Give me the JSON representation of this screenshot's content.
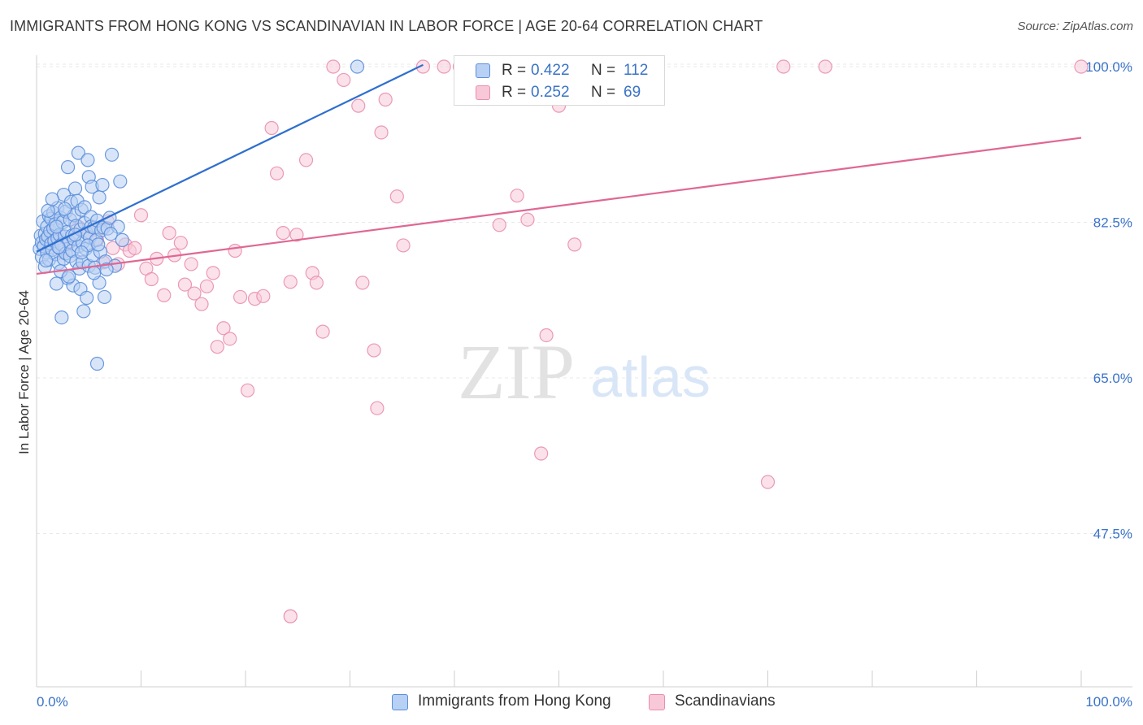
{
  "title": "IMMIGRANTS FROM HONG KONG VS SCANDINAVIAN IN LABOR FORCE | AGE 20-64 CORRELATION CHART",
  "source": "Source: ZipAtlas.com",
  "watermark": {
    "zip": "ZIP",
    "atlas": "atlas"
  },
  "colors": {
    "blue_fill": "#b8d0f3",
    "blue_stroke": "#5b8fdc",
    "blue_line": "#2f6fcf",
    "pink_fill": "#f8c8d8",
    "pink_stroke": "#e98fae",
    "pink_line": "#e06793",
    "axis_text": "#3a73c8",
    "grid": "#e8e8e8"
  },
  "legend_top": [
    {
      "r_label": "R =",
      "r_value": "0.422",
      "n_label": "N =",
      "n_value": "112",
      "color": "blue"
    },
    {
      "r_label": "R =",
      "r_value": "0.252",
      "n_label": "N =",
      "n_value": "69",
      "color": "pink"
    }
  ],
  "legend_bottom": [
    {
      "label": "Immigrants from Hong Kong",
      "color": "blue"
    },
    {
      "label": "Scandinavians",
      "color": "pink"
    }
  ],
  "chart_data": {
    "type": "scatter",
    "title": "IMMIGRANTS FROM HONG KONG VS SCANDINAVIAN IN LABOR FORCE | AGE 20-64 CORRELATION CHART",
    "xlabel": "",
    "ylabel": "In Labor Force | Age 20-64",
    "xlim": [
      0,
      100
    ],
    "ylim": [
      31,
      102
    ],
    "x_tick_labels": [
      "0.0%",
      "100.0%"
    ],
    "y_ticks": [
      47.5,
      65.0,
      82.5,
      100.0
    ],
    "y_tick_labels": [
      "47.5%",
      "65.0%",
      "82.5%",
      "100.0%"
    ],
    "grid": true,
    "legend_position": "top-center",
    "series": [
      {
        "name": "Immigrants from Hong Kong",
        "color": "blue",
        "trend": {
          "x": [
            0.0,
            37.0
          ],
          "y": [
            79.2,
            100.2
          ]
        },
        "points": [
          [
            0.3,
            79.5
          ],
          [
            0.4,
            81.0
          ],
          [
            0.5,
            78.6
          ],
          [
            0.5,
            80.2
          ],
          [
            0.6,
            82.6
          ],
          [
            0.7,
            79.8
          ],
          [
            0.8,
            81.2
          ],
          [
            0.8,
            77.5
          ],
          [
            0.9,
            80.6
          ],
          [
            1.0,
            82.0
          ],
          [
            1.0,
            79.1
          ],
          [
            1.1,
            80.9
          ],
          [
            1.2,
            83.2
          ],
          [
            1.2,
            78.3
          ],
          [
            1.3,
            81.5
          ],
          [
            1.4,
            80.1
          ],
          [
            1.4,
            82.9
          ],
          [
            1.5,
            79.4
          ],
          [
            1.6,
            81.8
          ],
          [
            1.6,
            83.6
          ],
          [
            1.7,
            80.4
          ],
          [
            1.8,
            78.9
          ],
          [
            1.8,
            82.3
          ],
          [
            1.9,
            75.6
          ],
          [
            2.0,
            80.7
          ],
          [
            2.0,
            84.1
          ],
          [
            2.1,
            77.9
          ],
          [
            2.2,
            81.1
          ],
          [
            2.2,
            79.6
          ],
          [
            2.3,
            83.0
          ],
          [
            2.4,
            80.0
          ],
          [
            2.4,
            71.8
          ],
          [
            2.5,
            82.5
          ],
          [
            2.6,
            78.4
          ],
          [
            2.6,
            85.6
          ],
          [
            2.7,
            80.9
          ],
          [
            2.8,
            79.0
          ],
          [
            2.8,
            83.7
          ],
          [
            2.9,
            81.4
          ],
          [
            3.0,
            88.7
          ],
          [
            3.0,
            76.2
          ],
          [
            3.1,
            80.3
          ],
          [
            3.2,
            82.8
          ],
          [
            3.2,
            78.7
          ],
          [
            3.3,
            84.8
          ],
          [
            3.4,
            81.0
          ],
          [
            3.4,
            79.3
          ],
          [
            3.5,
            75.4
          ],
          [
            3.6,
            83.3
          ],
          [
            3.6,
            80.6
          ],
          [
            3.7,
            86.3
          ],
          [
            3.8,
            78.1
          ],
          [
            3.8,
            82.1
          ],
          [
            3.9,
            84.9
          ],
          [
            4.0,
            90.3
          ],
          [
            4.0,
            79.8
          ],
          [
            4.1,
            77.3
          ],
          [
            4.2,
            81.7
          ],
          [
            4.2,
            75.0
          ],
          [
            4.3,
            83.9
          ],
          [
            4.4,
            80.2
          ],
          [
            4.4,
            78.0
          ],
          [
            4.5,
            72.5
          ],
          [
            4.6,
            84.2
          ],
          [
            4.6,
            82.4
          ],
          [
            4.7,
            79.5
          ],
          [
            4.8,
            74.0
          ],
          [
            4.8,
            81.3
          ],
          [
            4.9,
            89.5
          ],
          [
            5.0,
            77.6
          ],
          [
            5.0,
            87.6
          ],
          [
            5.1,
            80.8
          ],
          [
            5.2,
            83.1
          ],
          [
            5.2,
            82.0
          ],
          [
            5.3,
            86.5
          ],
          [
            5.4,
            78.8
          ],
          [
            5.5,
            81.9
          ],
          [
            5.6,
            77.4
          ],
          [
            5.7,
            80.5
          ],
          [
            5.8,
            66.6
          ],
          [
            5.8,
            82.7
          ],
          [
            6.0,
            85.3
          ],
          [
            6.0,
            75.7
          ],
          [
            6.1,
            79.2
          ],
          [
            6.2,
            81.6
          ],
          [
            6.3,
            86.7
          ],
          [
            6.4,
            81.9
          ],
          [
            6.5,
            74.1
          ],
          [
            6.6,
            78.1
          ],
          [
            6.8,
            81.8
          ],
          [
            7.0,
            83.0
          ],
          [
            7.2,
            90.1
          ],
          [
            7.5,
            77.6
          ],
          [
            7.8,
            82.0
          ],
          [
            8.0,
            87.1
          ],
          [
            8.2,
            80.5
          ],
          [
            1.1,
            83.8
          ],
          [
            1.5,
            85.1
          ],
          [
            2.3,
            77.0
          ],
          [
            3.1,
            76.4
          ],
          [
            4.9,
            79.9
          ],
          [
            5.5,
            76.8
          ],
          [
            6.7,
            77.2
          ],
          [
            1.9,
            82.0
          ],
          [
            2.7,
            84.0
          ],
          [
            3.7,
            81.1
          ],
          [
            4.3,
            79.1
          ],
          [
            5.9,
            80.0
          ],
          [
            7.1,
            81.2
          ],
          [
            0.9,
            78.2
          ],
          [
            2.1,
            79.7
          ],
          [
            30.7,
            100.0
          ]
        ]
      },
      {
        "name": "Scandinavians",
        "color": "pink",
        "trend": {
          "x": [
            0.0,
            100.0
          ],
          "y": [
            76.7,
            92.0
          ]
        },
        "points": [
          [
            1.0,
            79.9
          ],
          [
            1.5,
            80.8
          ],
          [
            2.5,
            79.1
          ],
          [
            3.2,
            80.3
          ],
          [
            4.0,
            82.0
          ],
          [
            5.0,
            81.4
          ],
          [
            5.8,
            80.5
          ],
          [
            6.4,
            78.0
          ],
          [
            6.8,
            82.6
          ],
          [
            7.3,
            79.6
          ],
          [
            7.8,
            77.8
          ],
          [
            8.5,
            80.0
          ],
          [
            8.9,
            79.3
          ],
          [
            9.4,
            79.6
          ],
          [
            10.0,
            83.3
          ],
          [
            10.5,
            77.3
          ],
          [
            11.0,
            76.1
          ],
          [
            11.5,
            78.4
          ],
          [
            12.2,
            74.3
          ],
          [
            12.7,
            81.3
          ],
          [
            13.2,
            78.8
          ],
          [
            13.8,
            80.2
          ],
          [
            14.2,
            75.5
          ],
          [
            14.8,
            77.8
          ],
          [
            15.1,
            74.5
          ],
          [
            15.8,
            73.3
          ],
          [
            16.3,
            75.3
          ],
          [
            16.9,
            76.8
          ],
          [
            17.3,
            68.5
          ],
          [
            17.9,
            70.6
          ],
          [
            18.5,
            69.4
          ],
          [
            19.0,
            79.3
          ],
          [
            19.5,
            74.1
          ],
          [
            20.2,
            63.6
          ],
          [
            20.9,
            73.9
          ],
          [
            21.7,
            74.2
          ],
          [
            22.5,
            93.1
          ],
          [
            23.0,
            88.0
          ],
          [
            23.6,
            81.3
          ],
          [
            24.3,
            75.8
          ],
          [
            24.9,
            81.1
          ],
          [
            25.8,
            89.5
          ],
          [
            26.4,
            76.8
          ],
          [
            26.8,
            75.7
          ],
          [
            27.4,
            70.2
          ],
          [
            28.4,
            100.0
          ],
          [
            29.4,
            98.5
          ],
          [
            30.8,
            95.6
          ],
          [
            31.2,
            75.7
          ],
          [
            32.3,
            68.1
          ],
          [
            32.6,
            61.6
          ],
          [
            33.0,
            92.6
          ],
          [
            33.4,
            96.3
          ],
          [
            34.5,
            85.4
          ],
          [
            35.1,
            79.9
          ],
          [
            37.0,
            100.0
          ],
          [
            39.0,
            100.0
          ],
          [
            40.5,
            100.0
          ],
          [
            44.3,
            82.2
          ],
          [
            46.0,
            85.5
          ],
          [
            47.0,
            82.8
          ],
          [
            48.3,
            56.5
          ],
          [
            48.8,
            69.8
          ],
          [
            50.0,
            95.6
          ],
          [
            51.5,
            80.0
          ],
          [
            70.0,
            53.3
          ],
          [
            71.5,
            100.0
          ],
          [
            75.5,
            100.0
          ],
          [
            100.0,
            100.0
          ]
        ]
      }
    ],
    "outlier_points": [
      [
        24.3,
        38.2
      ]
    ]
  }
}
